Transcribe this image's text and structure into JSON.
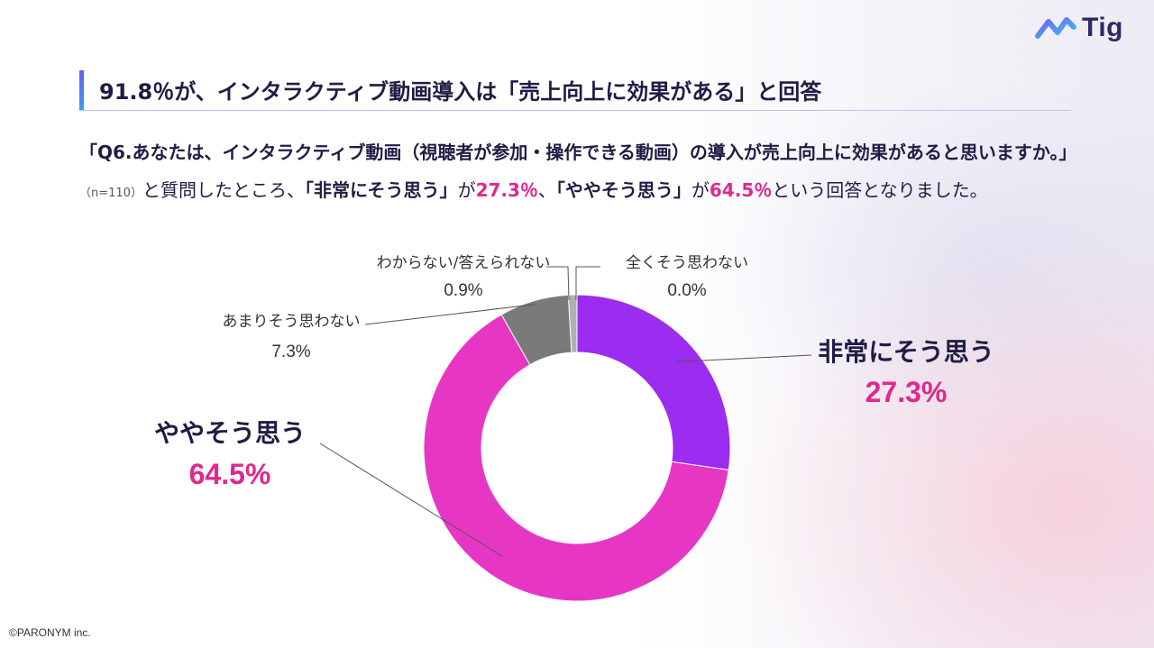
{
  "brand": {
    "logo_text": "Tig"
  },
  "heading": {
    "text": "91.8％が、インタラクティブ動画導入は「売上向上に効果がある」と回答"
  },
  "question": {
    "part1": "「Q6.あなたは、インタラクティブ動画（視聴者が参加・操作できる動画）の導入が売上向上に効果があると思いますか。」",
    "sample": "（n=110）",
    "part2": "と質問したところ、",
    "answer1": "「非常にそう思う」",
    "part3": "が",
    "pct1": "27.3％",
    "part4": "、",
    "answer2": "「ややそう思う」",
    "part5": "が",
    "pct2": "64.5％",
    "part6": "という回答となりました。"
  },
  "chart_data": {
    "type": "pie",
    "donut": true,
    "slices": [
      {
        "label": "非常にそう思う",
        "value": 27.3,
        "value_label": "27.3%",
        "color": "#9b2cf0"
      },
      {
        "label": "ややそう思う",
        "value": 64.5,
        "value_label": "64.5%",
        "color": "#e836c4"
      },
      {
        "label": "あまりそう思わない",
        "value": 7.3,
        "value_label": "7.3%",
        "color": "#7a7a7a"
      },
      {
        "label": "わからない/答えられない",
        "value": 0.9,
        "value_label": "0.9%",
        "color": "#b0b0b0"
      },
      {
        "label": "全くそう思わない",
        "value": 0.0,
        "value_label": "0.0%",
        "color": "#d0d0d0"
      }
    ],
    "start": "12 o'clock, clockwise",
    "label_colors": {
      "major_label": "#1f1d44",
      "major_value": "#e0288e",
      "minor": "#333333"
    }
  },
  "footer": {
    "copyright": "©PARONYM inc."
  }
}
